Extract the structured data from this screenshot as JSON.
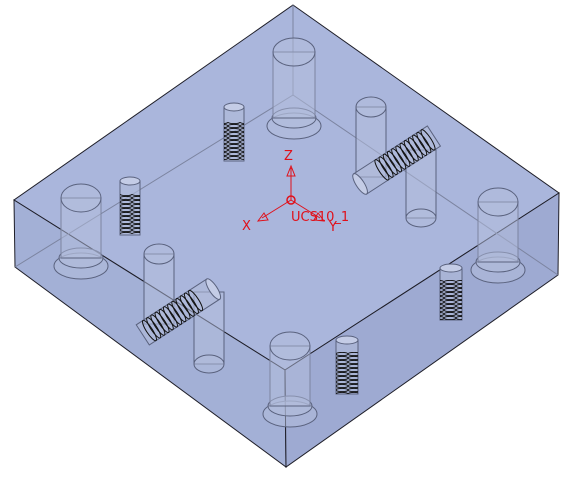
{
  "viewport": {
    "model_color": "#a9b6dc",
    "edge_color": "#1e1e28",
    "csys_color": "#e0101a"
  },
  "csys": {
    "name": "UCS10_1",
    "axis_z": "Z",
    "axis_x": "X",
    "axis_y": "Y"
  }
}
